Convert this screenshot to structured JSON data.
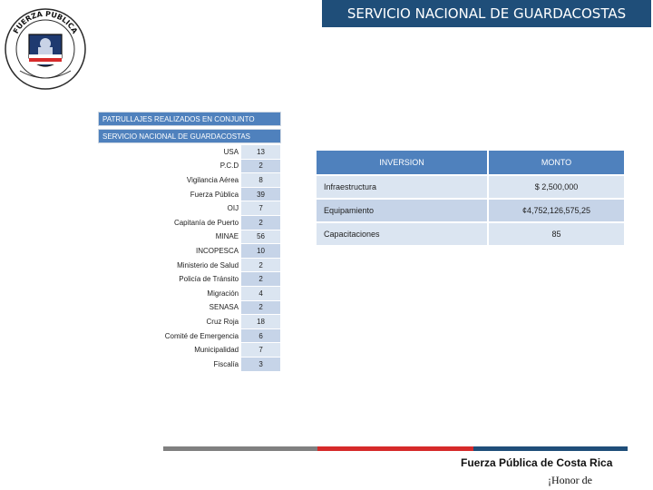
{
  "header": {
    "title": "SERVICIO NACIONAL DE GUARDACOSTAS"
  },
  "logo": {
    "text_top": "FUERZA PUBLICA",
    "icon": "shield-badge-icon"
  },
  "patrols": {
    "title": "PATRULLAJES REALIZADOS EN CONJUNTO",
    "subtitle": "SERVICIO NACIONAL DE GUARDACOSTAS",
    "rows": [
      {
        "label": "USA",
        "value": "13"
      },
      {
        "label": "P.C.D",
        "value": "2"
      },
      {
        "label": "Vigilancia Aérea",
        "value": "8"
      },
      {
        "label": "Fuerza Pública",
        "value": "39"
      },
      {
        "label": "OIJ",
        "value": "7"
      },
      {
        "label": "Capitanía de Puerto",
        "value": "2"
      },
      {
        "label": "MINAE",
        "value": "56"
      },
      {
        "label": "INCOPESCA",
        "value": "10"
      },
      {
        "label": "Ministerio de Salud",
        "value": "2"
      },
      {
        "label": "Policía de Tránsito",
        "value": "2"
      },
      {
        "label": "Migración",
        "value": "4"
      },
      {
        "label": "SENASA",
        "value": "2"
      },
      {
        "label": "Cruz Roja",
        "value": "18"
      },
      {
        "label": "Comité de Emergencia",
        "value": "6"
      },
      {
        "label": "Municipalidad",
        "value": "7"
      },
      {
        "label": "Fiscalía",
        "value": "3"
      }
    ]
  },
  "investment": {
    "headers": {
      "inversion": "INVERSION",
      "monto": "MONTO"
    },
    "rows": [
      {
        "inversion": "Infraestructura",
        "monto": "$ 2,500,000"
      },
      {
        "inversion": "Equipamiento",
        "monto": "¢4,752,126,575,25"
      },
      {
        "inversion": "Capacitaciones",
        "monto": "85"
      }
    ]
  },
  "footer": {
    "org": "Fuerza Pública de Costa Rica",
    "motto": "¡Honor de"
  },
  "colors": {
    "header_bg": "#1f4e79",
    "table_header": "#4f81bd",
    "cell_light": "#dbe5f1",
    "cell_alt": "#c6d4e8",
    "stripe_gray": "#808080",
    "stripe_red": "#d62a2a",
    "stripe_blue": "#1f4e79"
  }
}
